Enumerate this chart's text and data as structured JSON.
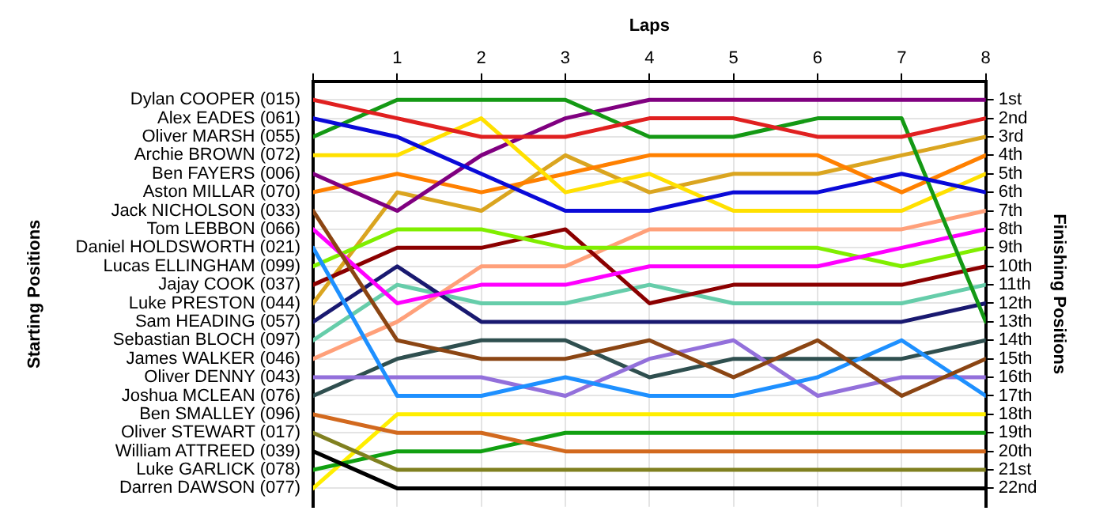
{
  "chart_data": {
    "type": "line",
    "xlabel": "Laps",
    "ylabel": "Finishing Positions",
    "x": [
      0,
      1,
      2,
      3,
      4,
      5,
      6,
      7,
      8
    ],
    "xlim": [
      0,
      8
    ],
    "xticks": [
      {
        "value": 0,
        "label": null
      },
      1,
      2,
      3,
      4,
      5,
      6,
      7,
      8
    ],
    "ylim": [
      23,
      0
    ],
    "yticks": [
      {
        "value": 1,
        "label": "1st"
      },
      {
        "value": 2,
        "label": "2nd"
      },
      {
        "value": 3,
        "label": "3rd"
      },
      {
        "value": 4,
        "label": "4th"
      },
      {
        "value": 5,
        "label": "5th"
      },
      {
        "value": 6,
        "label": "6th"
      },
      {
        "value": 7,
        "label": "7th"
      },
      {
        "value": 8,
        "label": "8th"
      },
      {
        "value": 9,
        "label": "9th"
      },
      {
        "value": 10,
        "label": "10th"
      },
      {
        "value": 11,
        "label": "11th"
      },
      {
        "value": 12,
        "label": "12th"
      },
      {
        "value": 13,
        "label": "13th"
      },
      {
        "value": 14,
        "label": "14th"
      },
      {
        "value": 15,
        "label": "15th"
      },
      {
        "value": 16,
        "label": "16th"
      },
      {
        "value": 17,
        "label": "17th"
      },
      {
        "value": 18,
        "label": "18th"
      },
      {
        "value": 19,
        "label": "19th"
      },
      {
        "value": 20,
        "label": "20th"
      },
      {
        "value": 21,
        "label": "21st"
      },
      {
        "value": 22,
        "label": "22nd"
      }
    ],
    "annotations": [
      "Starting Positions"
    ],
    "grid": true,
    "legend": false,
    "series": [
      {
        "name": "Dylan COOPER (015)",
        "color": "#e02020",
        "values": [
          1,
          2,
          3,
          3,
          2,
          2,
          3,
          3,
          2
        ]
      },
      {
        "name": "Alex EADES (061)",
        "color": "#0a0ad8",
        "values": [
          2,
          3,
          5,
          7,
          7,
          6,
          6,
          5,
          6
        ]
      },
      {
        "name": "Oliver MARSH (055)",
        "color": "#149914",
        "values": [
          3,
          1,
          1,
          1,
          3,
          3,
          2,
          2,
          13
        ]
      },
      {
        "name": "Archie BROWN (072)",
        "color": "#ffe000",
        "values": [
          4,
          4,
          2,
          6,
          5,
          7,
          7,
          7,
          5
        ]
      },
      {
        "name": "Ben FAYERS (006)",
        "color": "#800080",
        "values": [
          5,
          7,
          4,
          2,
          1,
          1,
          1,
          1,
          1
        ]
      },
      {
        "name": "Aston MILLAR (070)",
        "color": "#ff8000",
        "values": [
          6,
          5,
          6,
          5,
          4,
          4,
          4,
          6,
          4
        ]
      },
      {
        "name": "Jack NICHOLSON (033)",
        "color": "#8b4513",
        "values": [
          7,
          14,
          15,
          15,
          14,
          16,
          14,
          17,
          15
        ]
      },
      {
        "name": "Tom LEBBON (066)",
        "color": "#ff00ff",
        "values": [
          8,
          12,
          11,
          11,
          10,
          10,
          10,
          9,
          8
        ]
      },
      {
        "name": "Daniel HOLDSWORTH (021)",
        "color": "#1e90ff",
        "values": [
          9,
          17,
          17,
          16,
          17,
          17,
          16,
          14,
          17
        ]
      },
      {
        "name": "Lucas ELLINGHAM (099)",
        "color": "#80ee00",
        "values": [
          10,
          8,
          8,
          9,
          9,
          9,
          9,
          10,
          9
        ]
      },
      {
        "name": "Jajay COOK (037)",
        "color": "#8b0000",
        "values": [
          11,
          9,
          9,
          8,
          12,
          11,
          11,
          11,
          10
        ]
      },
      {
        "name": "Luke PRESTON (044)",
        "color": "#daa520",
        "values": [
          12,
          6,
          7,
          4,
          6,
          5,
          5,
          4,
          3
        ]
      },
      {
        "name": "Sam HEADING (057)",
        "color": "#191970",
        "values": [
          13,
          10,
          13,
          13,
          13,
          13,
          13,
          13,
          12
        ]
      },
      {
        "name": "Sebastian BLOCH (097)",
        "color": "#66cdaa",
        "values": [
          14,
          11,
          12,
          12,
          11,
          12,
          12,
          12,
          11
        ]
      },
      {
        "name": "James WALKER (046)",
        "color": "#ffa07a",
        "values": [
          15,
          13,
          10,
          10,
          8,
          8,
          8,
          8,
          7
        ]
      },
      {
        "name": "Oliver DENNY (043)",
        "color": "#9370db",
        "values": [
          16,
          16,
          16,
          17,
          15,
          14,
          17,
          16,
          16
        ]
      },
      {
        "name": "Joshua MCLEAN (076)",
        "color": "#2f4f4f",
        "values": [
          17,
          15,
          14,
          14,
          16,
          15,
          15,
          15,
          14
        ]
      },
      {
        "name": "Ben SMALLEY (096)",
        "color": "#d2691e",
        "values": [
          18,
          19,
          19,
          20,
          20,
          20,
          20,
          20,
          20
        ]
      },
      {
        "name": "Oliver STEWART (017)",
        "color": "#808020",
        "values": [
          19,
          21,
          21,
          21,
          21,
          21,
          21,
          21,
          21
        ]
      },
      {
        "name": "William ATTREED (039)",
        "color": "#000000",
        "values": [
          20,
          22,
          22,
          22,
          22,
          22,
          22,
          22,
          22
        ]
      },
      {
        "name": "Luke GARLICK (078)",
        "color": "#11a011",
        "values": [
          21,
          20,
          20,
          19,
          19,
          19,
          19,
          19,
          19
        ]
      },
      {
        "name": "Darren DAWSON (077)",
        "color": "#ffee00",
        "values": [
          22,
          18,
          18,
          18,
          18,
          18,
          18,
          18,
          18
        ]
      }
    ]
  }
}
